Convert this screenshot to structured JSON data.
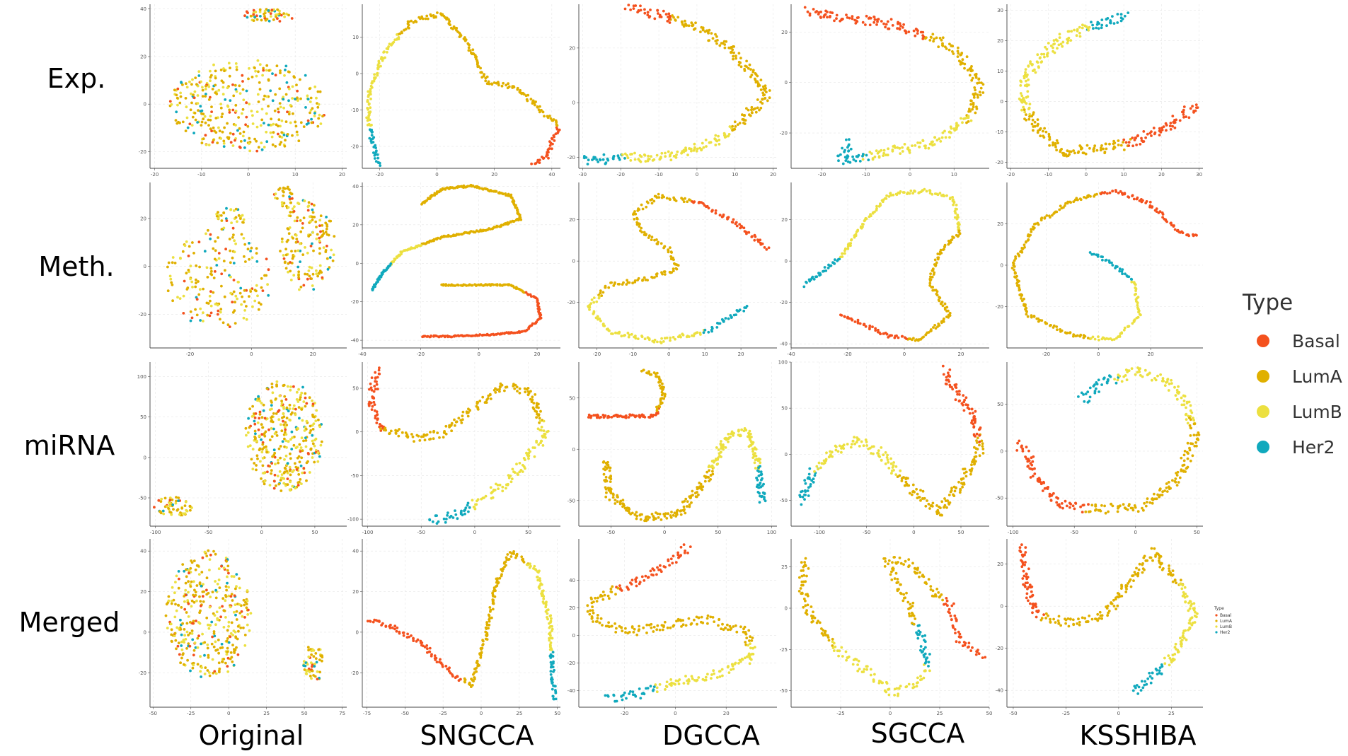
{
  "chart_data": {
    "type": "scatter",
    "row_labels": [
      "Exp.",
      "Meth.",
      "miRNA",
      "Merged"
    ],
    "column_labels": [
      "Original",
      "SNGCCA",
      "DGCCA",
      "SGCCA",
      "KSSHIBA"
    ],
    "legend": {
      "title": "Type",
      "placement": "right",
      "entries": [
        {
          "name": "Basal",
          "color": "#f4511e"
        },
        {
          "name": "LumA",
          "color": "#e0b000"
        },
        {
          "name": "LumB",
          "color": "#ece040"
        },
        {
          "name": "Her2",
          "color": "#10a9bd"
        }
      ]
    },
    "grid": true,
    "panels": [
      {
        "row": 0,
        "col": 0,
        "xlim": [
          -21,
          21
        ],
        "ylim": [
          -27,
          42
        ],
        "xticks": [
          -20,
          -10,
          0,
          10,
          20
        ],
        "yticks": [
          -20,
          0,
          20,
          40
        ],
        "pattern": "cloud_top"
      },
      {
        "row": 0,
        "col": 1,
        "xlim": [
          -26,
          43
        ],
        "ylim": [
          -26,
          19
        ],
        "xticks": [
          -20,
          0,
          20,
          40
        ],
        "yticks": [
          -20,
          -10,
          0,
          10
        ],
        "pattern": "curve"
      },
      {
        "row": 0,
        "col": 2,
        "xlim": [
          -31,
          21
        ],
        "ylim": [
          -24,
          36
        ],
        "xticks": [
          -30,
          -20,
          -10,
          0,
          10,
          20
        ],
        "yticks": [
          -20,
          0,
          20
        ],
        "pattern": "curve"
      },
      {
        "row": 0,
        "col": 3,
        "xlim": [
          -27,
          18
        ],
        "ylim": [
          -34,
          31
        ],
        "xticks": [
          -20,
          -10,
          0,
          10
        ],
        "yticks": [
          -20,
          0,
          20
        ],
        "pattern": "curve"
      },
      {
        "row": 0,
        "col": 4,
        "xlim": [
          -21,
          31
        ],
        "ylim": [
          -22,
          32
        ],
        "xticks": [
          -20,
          -10,
          0,
          10,
          20,
          30
        ],
        "yticks": [
          -20,
          -10,
          0,
          10,
          20,
          30
        ],
        "pattern": "curve"
      },
      {
        "row": 1,
        "col": 0,
        "xlim": [
          -33,
          31
        ],
        "ylim": [
          -34,
          35
        ],
        "xticks": [
          -20,
          0,
          20
        ],
        "yticks": [
          -20,
          0,
          20
        ],
        "pattern": "cloud_meth"
      },
      {
        "row": 1,
        "col": 1,
        "xlim": [
          -40,
          28
        ],
        "ylim": [
          -44,
          42
        ],
        "xticks": [
          -40,
          -20,
          0,
          20
        ],
        "yticks": [
          -40,
          -20,
          0,
          20,
          40
        ],
        "pattern": "curve"
      },
      {
        "row": 1,
        "col": 2,
        "xlim": [
          -25,
          30
        ],
        "ylim": [
          -42,
          38
        ],
        "xticks": [
          -20,
          -10,
          0,
          10,
          20
        ],
        "yticks": [
          -20,
          0,
          20
        ],
        "pattern": "curve"
      },
      {
        "row": 1,
        "col": 3,
        "xlim": [
          -40,
          30
        ],
        "ylim": [
          -42,
          38
        ],
        "xticks": [
          -40,
          -20,
          0,
          20
        ],
        "yticks": [
          -40,
          -20,
          0,
          20
        ],
        "pattern": "curve"
      },
      {
        "row": 1,
        "col": 4,
        "xlim": [
          -35,
          40
        ],
        "ylim": [
          -40,
          40
        ],
        "xticks": [
          -20,
          0,
          20
        ],
        "yticks": [
          -20,
          0,
          20
        ],
        "pattern": "curve"
      },
      {
        "row": 2,
        "col": 0,
        "xlim": [
          -105,
          80
        ],
        "ylim": [
          -85,
          118
        ],
        "xticks": [
          -100,
          -50,
          0,
          50
        ],
        "yticks": [
          -50,
          0,
          50,
          100
        ],
        "pattern": "cloud_mirna"
      },
      {
        "row": 2,
        "col": 1,
        "xlim": [
          -105,
          80
        ],
        "ylim": [
          -108,
          80
        ],
        "xticks": [
          -100,
          -50,
          0,
          50
        ],
        "yticks": [
          -100,
          -50,
          0,
          50
        ],
        "pattern": "curve"
      },
      {
        "row": 2,
        "col": 2,
        "xlim": [
          -80,
          105
        ],
        "ylim": [
          -75,
          85
        ],
        "xticks": [
          -50,
          0,
          50,
          100
        ],
        "yticks": [
          -50,
          0,
          50
        ],
        "pattern": "curve"
      },
      {
        "row": 2,
        "col": 3,
        "xlim": [
          -130,
          80
        ],
        "ylim": [
          -78,
          100
        ],
        "xticks": [
          -100,
          -50,
          0,
          50
        ],
        "yticks": [
          -50,
          0,
          50,
          100
        ],
        "pattern": "curve"
      },
      {
        "row": 2,
        "col": 4,
        "xlim": [
          -105,
          55
        ],
        "ylim": [
          -80,
          95
        ],
        "xticks": [
          -100,
          -50,
          0,
          50
        ],
        "yticks": [
          -50,
          0,
          50
        ],
        "pattern": "curve"
      },
      {
        "row": 3,
        "col": 0,
        "xlim": [
          -52,
          78
        ],
        "ylim": [
          -37,
          46
        ],
        "xticks": [
          -50,
          -25,
          0,
          25,
          50,
          75
        ],
        "yticks": [
          -20,
          0,
          20,
          40
        ],
        "pattern": "cloud_merged"
      },
      {
        "row": 3,
        "col": 1,
        "xlim": [
          -78,
          52
        ],
        "ylim": [
          -37,
          46
        ],
        "xticks": [
          -75,
          -50,
          -25,
          0,
          25,
          50
        ],
        "yticks": [
          -20,
          0,
          20,
          40
        ],
        "pattern": "curve"
      },
      {
        "row": 3,
        "col": 2,
        "xlim": [
          -38,
          40
        ],
        "ylim": [
          -52,
          70
        ],
        "xticks": [
          -20,
          0,
          20
        ],
        "yticks": [
          -40,
          -20,
          0,
          20,
          40
        ],
        "pattern": "curve"
      },
      {
        "row": 3,
        "col": 3,
        "xlim": [
          -50,
          50
        ],
        "ylim": [
          -60,
          42
        ],
        "xticks": [
          -25,
          0,
          25,
          50
        ],
        "yticks": [
          -50,
          -25,
          0,
          25
        ],
        "pattern": "curve"
      },
      {
        "row": 3,
        "col": 4,
        "xlim": [
          -53,
          40
        ],
        "ylim": [
          -48,
          32
        ],
        "xticks": [
          -50,
          -25,
          0,
          25
        ],
        "yticks": [
          -40,
          -20,
          0,
          20
        ],
        "pattern": "curve"
      }
    ]
  }
}
